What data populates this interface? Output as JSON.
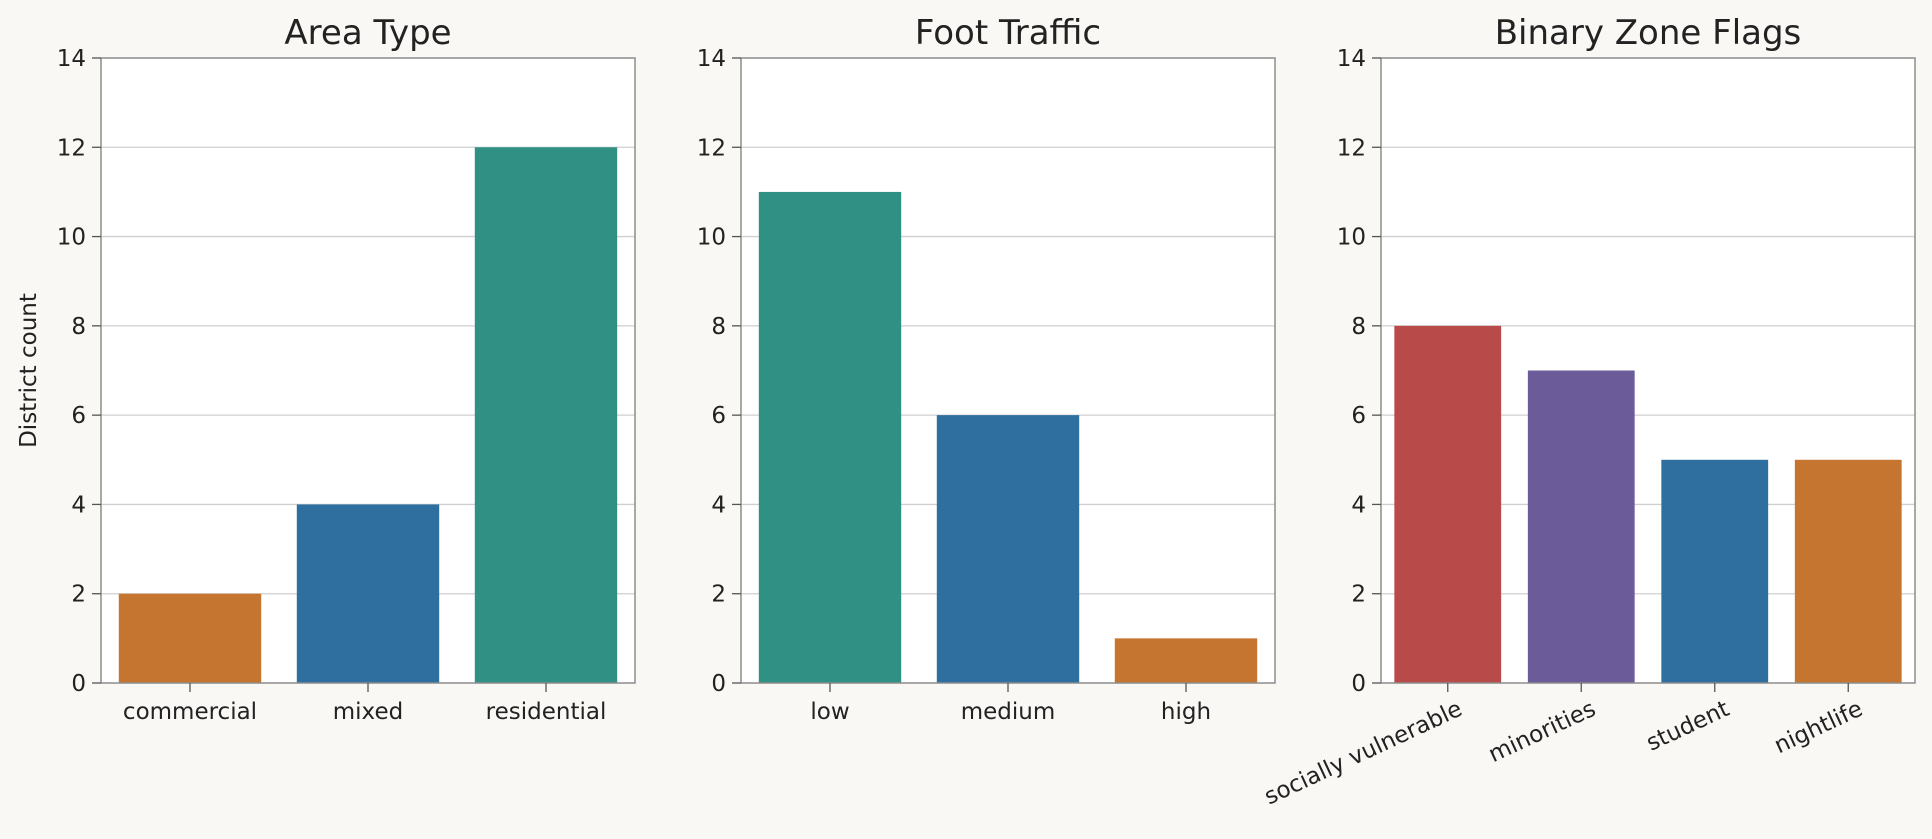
{
  "chart_data": [
    {
      "type": "bar",
      "title": "Area Type",
      "xlabel": "",
      "ylabel": "District count",
      "categories": [
        "commercial",
        "mixed",
        "residential"
      ],
      "values": [
        2,
        4,
        12
      ],
      "colors": [
        "#c67530",
        "#2e6f9f",
        "#2f9083"
      ],
      "ylim": [
        0,
        14
      ],
      "yticks": [
        "0",
        "2",
        "4",
        "6",
        "8",
        "10",
        "12",
        "14"
      ],
      "grid": true
    },
    {
      "type": "bar",
      "title": "Foot Traffic",
      "xlabel": "",
      "ylabel": "",
      "categories": [
        "low",
        "medium",
        "high"
      ],
      "values": [
        11,
        6,
        1
      ],
      "colors": [
        "#2f9083",
        "#2e6f9f",
        "#c67530"
      ],
      "ylim": [
        0,
        14
      ],
      "yticks": [
        "0",
        "2",
        "4",
        "6",
        "8",
        "10",
        "12",
        "14"
      ],
      "grid": true
    },
    {
      "type": "bar",
      "title": "Binary Zone Flags",
      "xlabel": "",
      "ylabel": "",
      "categories": [
        "socially vulnerable",
        "minorities",
        "student",
        "nightlife"
      ],
      "values": [
        8,
        7,
        5,
        5
      ],
      "colors": [
        "#b94a4a",
        "#6b5b98",
        "#2e6f9f",
        "#c67530"
      ],
      "ylim": [
        0,
        14
      ],
      "yticks": [
        "0",
        "2",
        "4",
        "6",
        "8",
        "10",
        "12",
        "14"
      ],
      "grid": true,
      "xtick_rotation": -25
    }
  ]
}
